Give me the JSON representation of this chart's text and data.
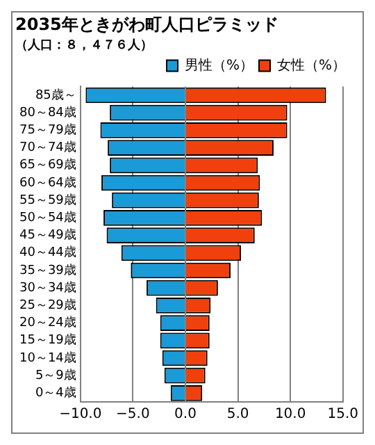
{
  "chart_data": {
    "type": "bar",
    "title": "2035年ときがわ町人口ピラミッド",
    "subtitle": "（人口：８，４７６人）",
    "orientation": "horizontal",
    "stacked": true,
    "categories": [
      "85歳～",
      "80～84歳",
      "75～79歳",
      "70～74歳",
      "65～69歳",
      "60～64歳",
      "55～59歳",
      "50～54歳",
      "45～49歳",
      "40～44歳",
      "35～39歳",
      "30～34歳",
      "25～29歳",
      "20～24歳",
      "15～19歳",
      "10～14歳",
      "5～9歳",
      "0～4歳"
    ],
    "series": [
      {
        "name": "男性（%）",
        "color": "#1a9ad6",
        "values": [
          -9.5,
          -7.2,
          -8.1,
          -7.4,
          -7.2,
          -8.0,
          -7.0,
          -7.8,
          -7.5,
          -6.1,
          -5.2,
          -3.7,
          -2.8,
          -2.4,
          -2.4,
          -2.2,
          -2.0,
          -1.4
        ]
      },
      {
        "name": "女性（%）",
        "color": "#f0400e",
        "values": [
          13.4,
          9.7,
          9.7,
          8.4,
          6.9,
          7.1,
          7.0,
          7.3,
          6.6,
          5.3,
          4.3,
          3.1,
          2.4,
          2.3,
          2.3,
          2.1,
          1.9,
          1.6
        ]
      }
    ],
    "xlim": [
      -10,
      15
    ],
    "xticks": [
      {
        "value": -10,
        "label": "−10.0"
      },
      {
        "value": -5,
        "label": "−5.0"
      },
      {
        "value": 0,
        "label": "0.0"
      },
      {
        "value": 5,
        "label": "5.0"
      },
      {
        "value": 10,
        "label": "10.0"
      },
      {
        "value": 15,
        "label": "15.0"
      }
    ],
    "grid": "x",
    "legend": "top right"
  }
}
